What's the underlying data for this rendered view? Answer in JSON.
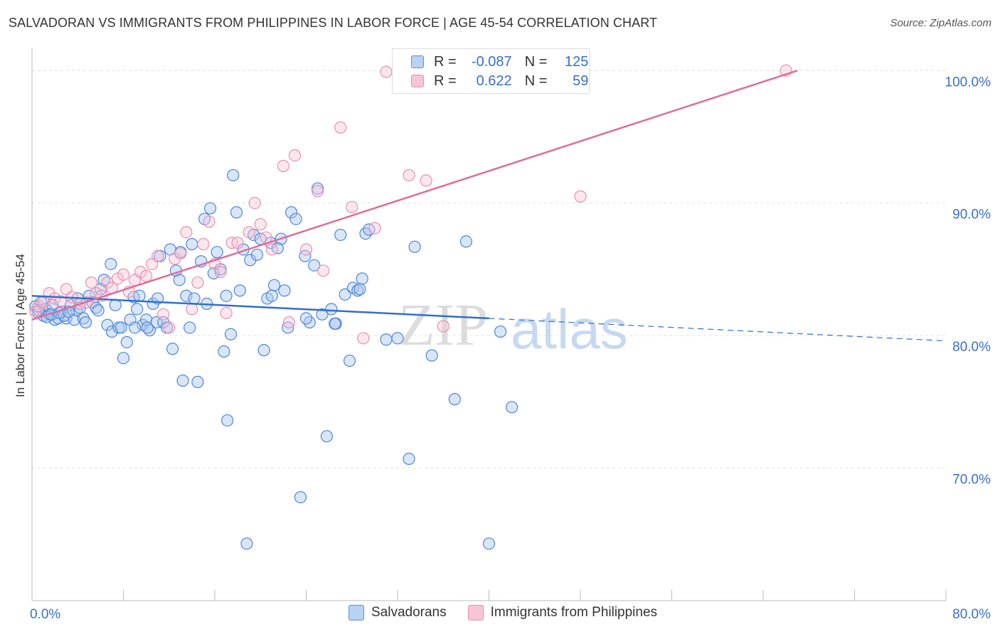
{
  "title": "SALVADORAN VS IMMIGRANTS FROM PHILIPPINES IN LABOR FORCE | AGE 45-54 CORRELATION CHART",
  "source": "Source: ZipAtlas.com",
  "watermark": {
    "zip": "ZIP",
    "atlas": "atlas"
  },
  "legend": {
    "r_label": "R =",
    "n_label": "N =",
    "series": [
      {
        "name": "Salvadorans",
        "r": "-0.087",
        "n": "125",
        "color": "#5d8fd6",
        "fill": "#b8d2f3"
      },
      {
        "name": "Immigrants from Philippines",
        "r": "0.622",
        "n": "59",
        "color": "#e06c98",
        "fill": "#f8c4d6"
      }
    ]
  },
  "chart_data": {
    "type": "scatter",
    "title": "SALVADORAN VS IMMIGRANTS FROM PHILIPPINES IN LABOR FORCE | AGE 45-54 CORRELATION CHART",
    "xlabel": "",
    "ylabel": "In Labor Force | Age 45-54",
    "xlim": [
      0,
      80
    ],
    "ylim": [
      60,
      102
    ],
    "x_tick_labels": [
      "0.0%",
      "80.0%"
    ],
    "y_ticks": [
      70,
      80,
      90,
      100
    ],
    "y_tick_labels": [
      "70.0%",
      "80.0%",
      "90.0%",
      "100.0%"
    ],
    "grid": true,
    "series": [
      {
        "name": "Salvadorans",
        "color": "#5d8fd6",
        "points": [
          [
            0.3,
            82.2
          ],
          [
            0.5,
            81.8
          ],
          [
            0.8,
            82.5
          ],
          [
            1.0,
            81.5
          ],
          [
            1.2,
            82.0
          ],
          [
            1.5,
            81.6
          ],
          [
            1.8,
            82.3
          ],
          [
            2.0,
            81.2
          ],
          [
            2.3,
            81.3
          ],
          [
            2.6,
            81.8
          ],
          [
            3.0,
            81.3
          ],
          [
            3.4,
            82.3
          ],
          [
            3.7,
            81.2
          ],
          [
            4.0,
            82.8
          ],
          [
            4.5,
            81.3
          ],
          [
            4.7,
            81.0
          ],
          [
            5.0,
            83.0
          ],
          [
            5.3,
            82.5
          ],
          [
            5.6,
            82.1
          ],
          [
            6.0,
            83.5
          ],
          [
            6.3,
            84.2
          ],
          [
            6.6,
            80.8
          ],
          [
            7.0,
            80.3
          ],
          [
            7.3,
            82.3
          ],
          [
            7.6,
            80.6
          ],
          [
            8.0,
            78.3
          ],
          [
            8.3,
            79.5
          ],
          [
            8.6,
            81.2
          ],
          [
            8.9,
            82.9
          ],
          [
            9.2,
            82.0
          ],
          [
            9.4,
            83.0
          ],
          [
            9.7,
            80.8
          ],
          [
            10.0,
            81.2
          ],
          [
            10.3,
            80.4
          ],
          [
            10.6,
            82.4
          ],
          [
            10.9,
            81.0
          ],
          [
            11.2,
            86.0
          ],
          [
            11.5,
            81.0
          ],
          [
            11.8,
            80.6
          ],
          [
            12.1,
            86.5
          ],
          [
            12.3,
            79.0
          ],
          [
            12.6,
            84.9
          ],
          [
            12.9,
            84.2
          ],
          [
            13.2,
            76.6
          ],
          [
            13.5,
            83.0
          ],
          [
            13.8,
            80.6
          ],
          [
            14.0,
            86.9
          ],
          [
            14.2,
            82.8
          ],
          [
            14.5,
            76.5
          ],
          [
            14.8,
            85.6
          ],
          [
            15.1,
            88.8
          ],
          [
            15.3,
            82.4
          ],
          [
            15.6,
            89.6
          ],
          [
            15.9,
            84.7
          ],
          [
            16.2,
            86.3
          ],
          [
            16.5,
            85.0
          ],
          [
            16.8,
            78.8
          ],
          [
            17.1,
            73.6
          ],
          [
            17.4,
            80.1
          ],
          [
            17.6,
            92.1
          ],
          [
            17.9,
            89.3
          ],
          [
            18.2,
            83.4
          ],
          [
            18.5,
            86.5
          ],
          [
            18.8,
            64.3
          ],
          [
            19.1,
            85.7
          ],
          [
            19.4,
            87.6
          ],
          [
            19.7,
            86.1
          ],
          [
            20.0,
            87.3
          ],
          [
            20.3,
            78.9
          ],
          [
            20.6,
            82.8
          ],
          [
            20.9,
            87.0
          ],
          [
            21.2,
            83.8
          ],
          [
            21.5,
            86.6
          ],
          [
            21.8,
            87.3
          ],
          [
            22.1,
            83.4
          ],
          [
            22.4,
            80.6
          ],
          [
            22.7,
            89.3
          ],
          [
            23.1,
            88.8
          ],
          [
            23.5,
            67.8
          ],
          [
            23.9,
            86.0
          ],
          [
            24.3,
            81.0
          ],
          [
            24.7,
            85.3
          ],
          [
            25.0,
            91.1
          ],
          [
            25.4,
            81.6
          ],
          [
            25.8,
            72.4
          ],
          [
            26.2,
            82.0
          ],
          [
            26.6,
            80.9
          ],
          [
            27.0,
            87.6
          ],
          [
            27.4,
            83.1
          ],
          [
            27.8,
            78.1
          ],
          [
            28.1,
            83.6
          ],
          [
            28.5,
            83.4
          ],
          [
            28.9,
            84.3
          ],
          [
            29.2,
            87.7
          ],
          [
            29.5,
            88.0
          ],
          [
            31.0,
            79.7
          ],
          [
            32.0,
            79.8
          ],
          [
            33.0,
            70.7
          ],
          [
            33.5,
            86.7
          ],
          [
            35.0,
            78.5
          ],
          [
            37.0,
            75.2
          ],
          [
            38.0,
            87.1
          ],
          [
            40.0,
            64.3
          ],
          [
            41.0,
            80.3
          ],
          [
            42.0,
            74.6
          ],
          [
            1.3,
            81.4
          ],
          [
            2.8,
            81.5
          ],
          [
            3.9,
            81.9
          ],
          [
            5.8,
            81.9
          ],
          [
            6.9,
            85.4
          ],
          [
            9.0,
            80.6
          ],
          [
            11.0,
            82.8
          ],
          [
            13.0,
            86.3
          ],
          [
            17.0,
            83.0
          ],
          [
            21.0,
            83.0
          ],
          [
            24.0,
            81.3
          ],
          [
            26.5,
            80.9
          ],
          [
            28.7,
            83.5
          ],
          [
            0.6,
            81.9
          ],
          [
            1.7,
            81.6
          ],
          [
            2.4,
            81.7
          ],
          [
            3.2,
            81.8
          ],
          [
            4.2,
            82.1
          ],
          [
            7.8,
            80.6
          ],
          [
            10.1,
            80.6
          ]
        ]
      },
      {
        "name": "Immigrants from Philippines",
        "color": "#e06c98",
        "points": [
          [
            0.3,
            81.8
          ],
          [
            0.6,
            82.2
          ],
          [
            1.0,
            82.5
          ],
          [
            1.5,
            83.2
          ],
          [
            2.0,
            82.8
          ],
          [
            2.5,
            82.6
          ],
          [
            3.0,
            83.5
          ],
          [
            3.5,
            82.9
          ],
          [
            4.2,
            82.4
          ],
          [
            4.8,
            82.5
          ],
          [
            5.2,
            84.0
          ],
          [
            5.6,
            83.2
          ],
          [
            6.1,
            83.0
          ],
          [
            6.6,
            84.0
          ],
          [
            7.0,
            83.6
          ],
          [
            7.5,
            84.3
          ],
          [
            8.0,
            84.6
          ],
          [
            8.5,
            83.3
          ],
          [
            9.0,
            84.2
          ],
          [
            9.5,
            84.8
          ],
          [
            10.0,
            84.5
          ],
          [
            10.5,
            85.4
          ],
          [
            11.0,
            86.0
          ],
          [
            11.5,
            81.6
          ],
          [
            12.0,
            80.6
          ],
          [
            12.5,
            85.8
          ],
          [
            13.0,
            86.2
          ],
          [
            13.5,
            87.8
          ],
          [
            14.0,
            82.0
          ],
          [
            14.5,
            84.0
          ],
          [
            15.0,
            86.9
          ],
          [
            15.5,
            88.6
          ],
          [
            16.0,
            85.4
          ],
          [
            16.5,
            84.8
          ],
          [
            17.0,
            81.7
          ],
          [
            17.5,
            87.0
          ],
          [
            18.0,
            87.0
          ],
          [
            19.0,
            87.8
          ],
          [
            19.5,
            90.0
          ],
          [
            20.0,
            88.4
          ],
          [
            20.5,
            87.4
          ],
          [
            21.0,
            86.5
          ],
          [
            22.0,
            92.8
          ],
          [
            22.5,
            81.0
          ],
          [
            23.0,
            93.6
          ],
          [
            24.0,
            86.5
          ],
          [
            25.0,
            90.9
          ],
          [
            25.5,
            84.9
          ],
          [
            27.0,
            95.7
          ],
          [
            28.0,
            89.7
          ],
          [
            29.0,
            79.8
          ],
          [
            30.0,
            88.1
          ],
          [
            31.0,
            99.9
          ],
          [
            33.0,
            92.1
          ],
          [
            34.5,
            91.7
          ],
          [
            36.0,
            80.7
          ],
          [
            48.0,
            90.5
          ],
          [
            66.0,
            100.0
          ],
          [
            34.0,
            100.0
          ]
        ]
      }
    ],
    "trend_lines": [
      {
        "series": "Salvadorans",
        "x": [
          0,
          80
        ],
        "y": [
          83.0,
          79.6
        ],
        "solid_until_x": 40
      },
      {
        "series": "Immigrants from Philippines",
        "x": [
          0,
          67
        ],
        "y": [
          81.2,
          100.0
        ]
      }
    ]
  }
}
